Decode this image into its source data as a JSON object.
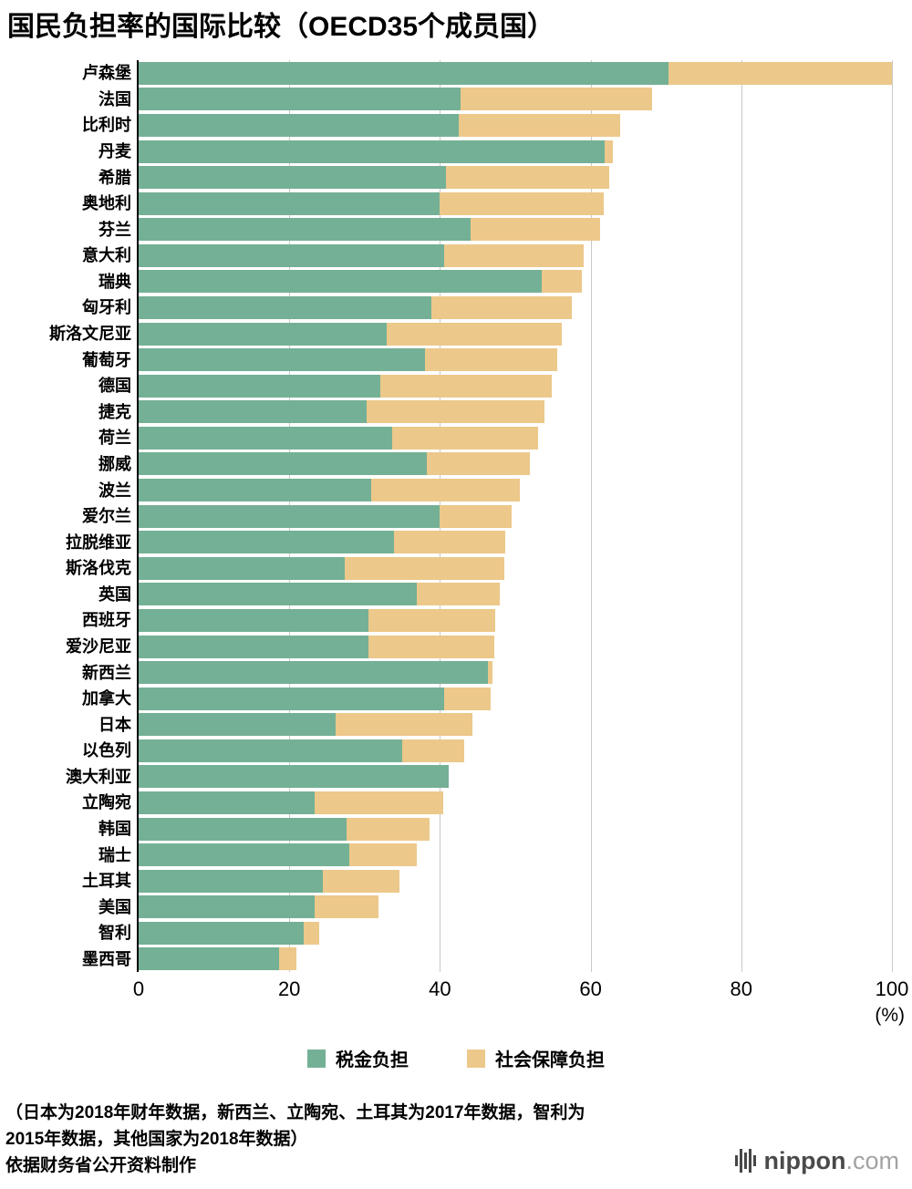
{
  "title": "国民负担率的国际比较（OECD35个成员国）",
  "chart_data": {
    "type": "bar",
    "orientation": "horizontal",
    "stacked": true,
    "title": "国民负担率的国际比较（OECD35个成员国）",
    "x_unit": "(%)",
    "xlim": [
      0,
      100
    ],
    "x_ticks": [
      0,
      20,
      40,
      60,
      80,
      100
    ],
    "grid": true,
    "legend_position": "bottom",
    "categories": [
      "卢森堡",
      "法国",
      "比利时",
      "丹麦",
      "希腊",
      "奥地利",
      "芬兰",
      "意大利",
      "瑞典",
      "匈牙利",
      "斯洛文尼亚",
      "葡萄牙",
      "德国",
      "捷克",
      "荷兰",
      "挪威",
      "波兰",
      "爱尔兰",
      "拉脱维亚",
      "斯洛伐克",
      "英国",
      "西班牙",
      "爱沙尼亚",
      "新西兰",
      "加拿大",
      "日本",
      "以色列",
      "澳大利亚",
      "立陶宛",
      "韩国",
      "瑞士",
      "土耳其",
      "美国",
      "智利",
      "墨西哥"
    ],
    "series": [
      {
        "name": "税金负担",
        "color": "#74b095",
        "values": [
          70.8,
          42.7,
          42.5,
          61.9,
          40.8,
          40.0,
          44.1,
          40.6,
          53.5,
          38.9,
          32.9,
          38.0,
          32.1,
          30.3,
          33.7,
          38.3,
          30.9,
          40.0,
          33.9,
          27.4,
          36.9,
          30.5,
          30.5,
          46.4,
          40.6,
          26.1,
          35.0,
          41.2,
          23.4,
          27.6,
          28.0,
          24.5,
          23.4,
          21.9,
          18.6
        ]
      },
      {
        "name": "社会保障负担",
        "color": "#ecc88a",
        "values": [
          29.8,
          25.5,
          21.4,
          1.0,
          21.7,
          21.7,
          17.2,
          18.5,
          5.3,
          18.6,
          23.3,
          17.6,
          22.8,
          23.6,
          19.3,
          13.6,
          19.7,
          9.5,
          14.8,
          21.1,
          11.0,
          16.8,
          16.7,
          0.6,
          6.1,
          18.2,
          8.2,
          0.0,
          17.0,
          11.0,
          8.9,
          10.1,
          8.4,
          2.1,
          2.3
        ]
      }
    ]
  },
  "footer": {
    "note_line1": "（日本为2018年财年数据，新西兰、立陶宛、土耳其为2017年数据，智利为",
    "note_line2": "2015年数据，其他国家为2018年数据）",
    "source": "依据财务省公开资料制作"
  },
  "logo": {
    "name": "nippon",
    "suffix": ".com"
  }
}
